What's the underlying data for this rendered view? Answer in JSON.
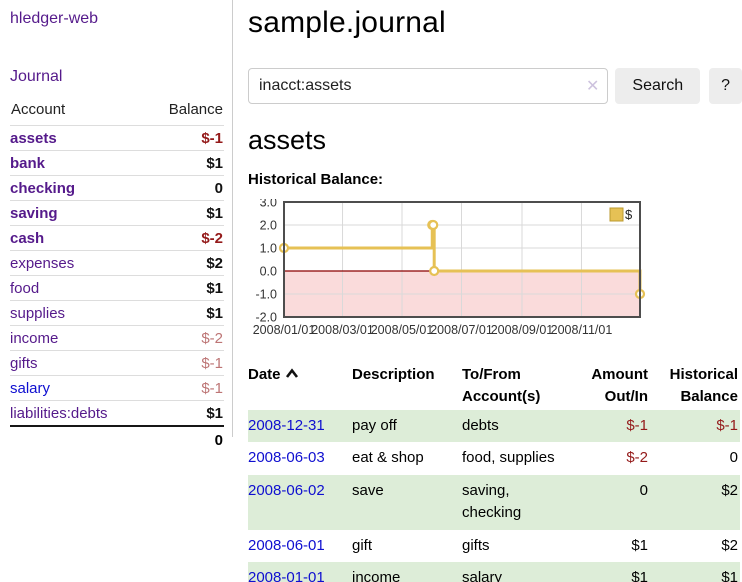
{
  "colors": {
    "link_purple": "#551a8b",
    "link_blue": "#0f0fd0",
    "neg_strong": "#941a1a",
    "neg_muted": "#bd7575",
    "row_green": "#ddedd8",
    "chart_gold": "#e6c155",
    "chart_gold_dark": "#bb9a2f",
    "negative_region_pink": "#fadbdb",
    "zero_line_red": "#8b0000"
  },
  "sidebar": {
    "app_title": "hledger-web",
    "journal_label": "Journal",
    "accounts_table": {
      "headers": {
        "account": "Account",
        "balance": "Balance"
      },
      "rows": [
        {
          "name": "assets",
          "indent": 1,
          "bold": true,
          "balance": "$-1",
          "balance_style": "neg-strong"
        },
        {
          "name": "bank",
          "indent": 2,
          "bold": true,
          "balance": "$1",
          "balance_style": "pos"
        },
        {
          "name": "checking",
          "indent": 3,
          "bold": true,
          "balance": "0",
          "balance_style": "pos"
        },
        {
          "name": "saving",
          "indent": 3,
          "bold": true,
          "balance": "$1",
          "balance_style": "pos"
        },
        {
          "name": "cash",
          "indent": 2,
          "bold": true,
          "balance": "$-2",
          "balance_style": "neg-strong"
        },
        {
          "name": "expenses",
          "indent": 1,
          "bold": false,
          "balance": "$2",
          "balance_style": "pos"
        },
        {
          "name": "food",
          "indent": 2,
          "bold": false,
          "balance": "$1",
          "balance_style": "pos"
        },
        {
          "name": "supplies",
          "indent": 2,
          "bold": false,
          "balance": "$1",
          "balance_style": "pos"
        },
        {
          "name": "income",
          "indent": 1,
          "bold": false,
          "balance": "$-2",
          "balance_style": "neg-muted"
        },
        {
          "name": "gifts",
          "indent": 2,
          "bold": false,
          "balance": "$-1",
          "balance_style": "neg-muted"
        },
        {
          "name": "salary",
          "indent": 2,
          "bold": false,
          "link_color": "blue",
          "balance": "$-1",
          "balance_style": "neg-muted"
        },
        {
          "name": "liabilities:debts",
          "indent": 1,
          "bold": false,
          "balance": "$1",
          "balance_style": "pos"
        }
      ],
      "total": "0"
    }
  },
  "main": {
    "title": "sample.journal",
    "search": {
      "value": "inacct:assets",
      "clear_icon": "✕",
      "button_label": "Search",
      "help_label": "?"
    },
    "account_heading": "assets",
    "chart_heading": "Historical Balance:"
  },
  "chart_data": {
    "type": "line",
    "step": true,
    "title": "Historical Balance:",
    "series": [
      {
        "name": "$",
        "points": [
          [
            "2008-01-01",
            1
          ],
          [
            "2008-06-01",
            2
          ],
          [
            "2008-06-02",
            2
          ],
          [
            "2008-06-03",
            0
          ],
          [
            "2008-12-31",
            -1
          ]
        ]
      }
    ],
    "x_range": [
      "2008-01-01",
      "2008-12-31"
    ],
    "ylim": [
      -2,
      3
    ],
    "y_ticks": [
      3.0,
      2.0,
      1.0,
      0.0,
      -1.0,
      -2.0
    ],
    "x_ticks": [
      "2008/01/01",
      "2008/03/01",
      "2008/05/01",
      "2008/07/01",
      "2008/09/01",
      "2008/11/01"
    ],
    "grid": true,
    "legend": {
      "label": "$",
      "position": "top-right"
    },
    "negative_region": true,
    "zero_line": true
  },
  "register_table": {
    "headers": {
      "date": "Date",
      "sort": "ascending",
      "description": "Description",
      "accounts": "To/From Account(s)",
      "amount": "Amount Out/In",
      "balance": "Historical Balance"
    },
    "rows": [
      {
        "date": "2008-12-31",
        "description": "pay off",
        "accounts": "debts",
        "amount": "$-1",
        "balance": "$-1",
        "shaded": true
      },
      {
        "date": "2008-06-03",
        "description": "eat & shop",
        "accounts": "food, supplies",
        "amount": "$-2",
        "balance": "0",
        "shaded": false
      },
      {
        "date": "2008-06-02",
        "description": "save",
        "accounts": "saving, checking",
        "amount": "0",
        "balance": "$2",
        "shaded": true
      },
      {
        "date": "2008-06-01",
        "description": "gift",
        "accounts": "gifts",
        "amount": "$1",
        "balance": "$2",
        "shaded": false
      },
      {
        "date": "2008-01-01",
        "description": "income",
        "accounts": "salary",
        "amount": "$1",
        "balance": "$1",
        "shaded": true
      }
    ]
  }
}
